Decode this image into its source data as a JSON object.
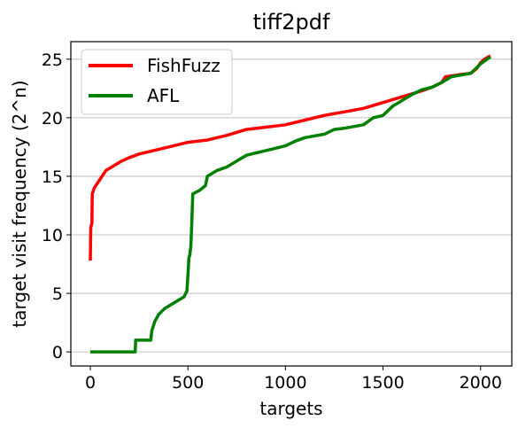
{
  "chart_data": {
    "type": "line",
    "title": "tiff2pdf",
    "xlabel": "targets",
    "ylabel": "target visit frequency (2^n)",
    "xlim": [
      -100,
      2160
    ],
    "ylim": [
      -1.2,
      26.5
    ],
    "xticks": [
      0,
      500,
      1000,
      1500,
      2000
    ],
    "yticks": [
      0,
      5,
      10,
      15,
      20,
      25
    ],
    "grid": "horizontal",
    "legend": "top-left",
    "series": [
      {
        "name": "FishFuzz",
        "color": "#ff0000",
        "points": [
          [
            0,
            7.8
          ],
          [
            2,
            10.6
          ],
          [
            8,
            11.0
          ],
          [
            10,
            13.5
          ],
          [
            20,
            14.0
          ],
          [
            40,
            14.5
          ],
          [
            60,
            15.0
          ],
          [
            80,
            15.5
          ],
          [
            100,
            15.7
          ],
          [
            130,
            16.0
          ],
          [
            160,
            16.3
          ],
          [
            200,
            16.6
          ],
          [
            250,
            16.9
          ],
          [
            300,
            17.1
          ],
          [
            400,
            17.5
          ],
          [
            500,
            17.9
          ],
          [
            600,
            18.1
          ],
          [
            700,
            18.5
          ],
          [
            800,
            19.0
          ],
          [
            900,
            19.2
          ],
          [
            1000,
            19.4
          ],
          [
            1100,
            19.8
          ],
          [
            1200,
            20.2
          ],
          [
            1300,
            20.5
          ],
          [
            1400,
            20.8
          ],
          [
            1500,
            21.3
          ],
          [
            1600,
            21.8
          ],
          [
            1700,
            22.3
          ],
          [
            1750,
            22.6
          ],
          [
            1800,
            23.0
          ],
          [
            1820,
            23.5
          ],
          [
            1900,
            23.7
          ],
          [
            1950,
            23.8
          ],
          [
            1980,
            24.2
          ],
          [
            2000,
            24.7
          ],
          [
            2020,
            25.0
          ],
          [
            2050,
            25.3
          ]
        ]
      },
      {
        "name": "AFL",
        "color": "#008000",
        "points": [
          [
            0,
            0
          ],
          [
            230,
            0
          ],
          [
            232,
            1.0
          ],
          [
            310,
            1.0
          ],
          [
            315,
            1.8
          ],
          [
            330,
            2.6
          ],
          [
            350,
            3.2
          ],
          [
            380,
            3.7
          ],
          [
            430,
            4.2
          ],
          [
            480,
            4.7
          ],
          [
            495,
            5.2
          ],
          [
            500,
            6.5
          ],
          [
            505,
            8.0
          ],
          [
            510,
            8.3
          ],
          [
            515,
            9.0
          ],
          [
            520,
            11.0
          ],
          [
            525,
            13.5
          ],
          [
            560,
            13.8
          ],
          [
            590,
            14.2
          ],
          [
            600,
            15.0
          ],
          [
            650,
            15.5
          ],
          [
            700,
            15.8
          ],
          [
            750,
            16.3
          ],
          [
            800,
            16.8
          ],
          [
            850,
            17.0
          ],
          [
            900,
            17.2
          ],
          [
            1000,
            17.6
          ],
          [
            1050,
            18.0
          ],
          [
            1100,
            18.3
          ],
          [
            1200,
            18.6
          ],
          [
            1250,
            19.0
          ],
          [
            1300,
            19.1
          ],
          [
            1400,
            19.4
          ],
          [
            1450,
            20.0
          ],
          [
            1500,
            20.2
          ],
          [
            1550,
            21.0
          ],
          [
            1600,
            21.5
          ],
          [
            1650,
            22.0
          ],
          [
            1700,
            22.4
          ],
          [
            1750,
            22.6
          ],
          [
            1800,
            23.0
          ],
          [
            1850,
            23.5
          ],
          [
            1950,
            23.8
          ],
          [
            2000,
            24.6
          ],
          [
            2050,
            25.2
          ]
        ]
      }
    ]
  }
}
